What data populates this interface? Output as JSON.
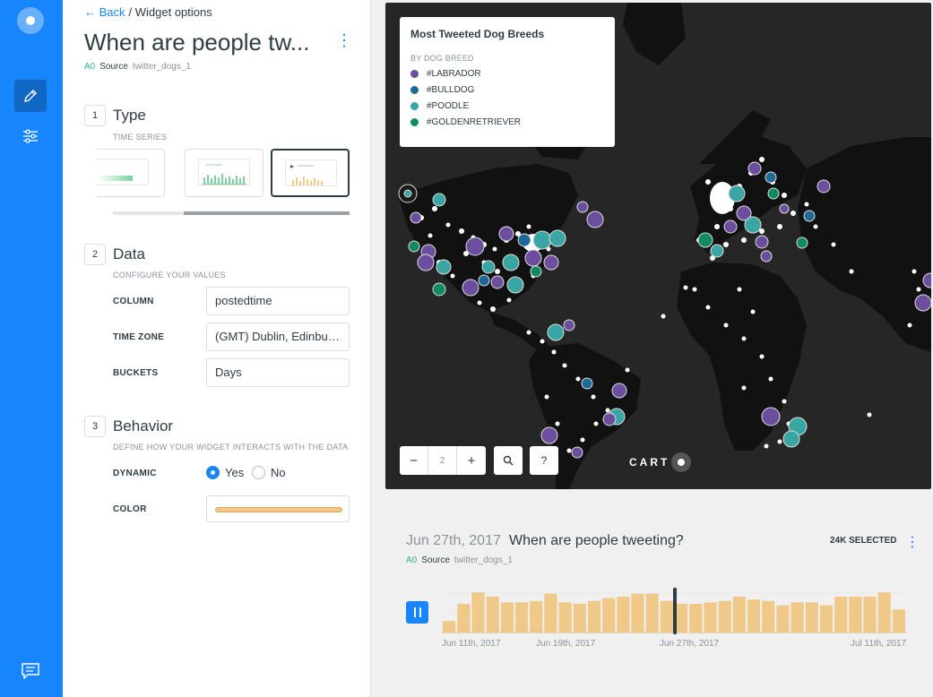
{
  "rail": {
    "icons": [
      "carto-logo",
      "pencil-icon",
      "sliders-icon",
      "chat-icon"
    ]
  },
  "panel": {
    "breadcrumb": {
      "back": "Back",
      "current": "/ Widget options"
    },
    "title": "When are people tw...",
    "source": {
      "node": "A0",
      "label": "Source",
      "name": "twitter_dogs_1"
    },
    "type": {
      "step": "1",
      "title": "Type",
      "subtitle": "TIME SERIES"
    },
    "data": {
      "step": "2",
      "title": "Data",
      "subtitle": "CONFIGURE YOUR VALUES",
      "column_label": "COLUMN",
      "column_value": "postedtime",
      "timezone_label": "TIME ZONE",
      "timezone_value": "(GMT) Dublin, Edinburgh, Lisbon, London",
      "buckets_label": "BUCKETS",
      "buckets_value": "Days"
    },
    "behavior": {
      "step": "3",
      "title": "Behavior",
      "subtitle": "DEFINE HOW YOUR WIDGET INTERACTS WITH THE DATA",
      "dynamic_label": "DYNAMIC",
      "yes": "Yes",
      "no": "No",
      "color_label": "COLOR",
      "color_value": "#f0c888"
    }
  },
  "map": {
    "legend": {
      "title": "Most Tweeted Dog Breeds",
      "subtitle": "BY DOG BREED",
      "items": [
        {
          "label": "#LABRADOR",
          "color": "#6b4f9e"
        },
        {
          "label": "#BULLDOG",
          "color": "#1d6a96"
        },
        {
          "label": "#POODLE",
          "color": "#3aa6a3"
        },
        {
          "label": "#GOLDENRETRIEVER",
          "color": "#128a60"
        }
      ]
    },
    "zoom_level": "2",
    "zoom_out": "−",
    "zoom_in": "+",
    "search": "⚲",
    "help": "?",
    "brand": "CART"
  },
  "timeseries": {
    "date": "Jun 27th, 2017",
    "title": "When are people tweeting?",
    "selected": "24K SELECTED",
    "source": {
      "node": "A0",
      "label": "Source",
      "name": "twitter_dogs_1"
    },
    "ticks": [
      "Jun 11th, 2017",
      "Jun 19th, 2017",
      "Jun 27th, 2017",
      "Jul 11th, 2017"
    ]
  },
  "chart_data": {
    "type": "bar",
    "values": [
      8,
      20,
      28,
      25,
      21,
      21,
      22,
      27,
      21,
      20,
      22,
      24,
      25,
      27,
      27,
      22,
      20,
      20,
      21,
      22,
      25,
      23,
      22,
      19,
      21,
      21,
      19,
      25,
      25,
      25,
      28,
      16
    ],
    "ylim": [
      0,
      30
    ],
    "bar_color": "#f0c888",
    "cursor_index": 16
  }
}
